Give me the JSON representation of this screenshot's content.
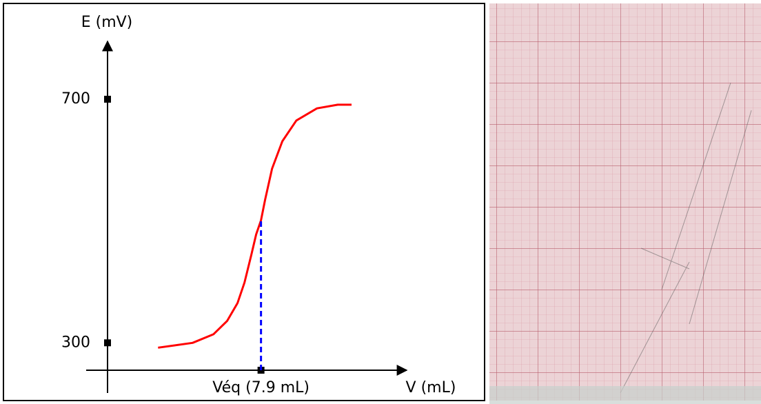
{
  "chart_data": {
    "type": "line",
    "y_label": "E (mV)",
    "x_label": "V (mL)",
    "xlim": [
      -1.1,
      15.4
    ],
    "ylim": [
      255,
      795
    ],
    "yticks": [
      300,
      700
    ],
    "xticks": [
      {
        "value": 7.9,
        "label": "Véq (7.9 mL)"
      }
    ],
    "series": [
      {
        "color": "#ff0000",
        "x": [
          2.6,
          4.38,
          5.45,
          6.16,
          6.69,
          7.05,
          7.4,
          7.65,
          7.9,
          8.11,
          8.47,
          9.0,
          9.72,
          10.78,
          11.85,
          12.56
        ],
        "values": [
          292,
          300,
          314,
          336,
          365,
          399,
          444,
          478,
          501,
          535,
          586,
          631,
          665,
          685,
          691,
          691
        ]
      }
    ],
    "equivalence_color": "#0000ff"
  }
}
